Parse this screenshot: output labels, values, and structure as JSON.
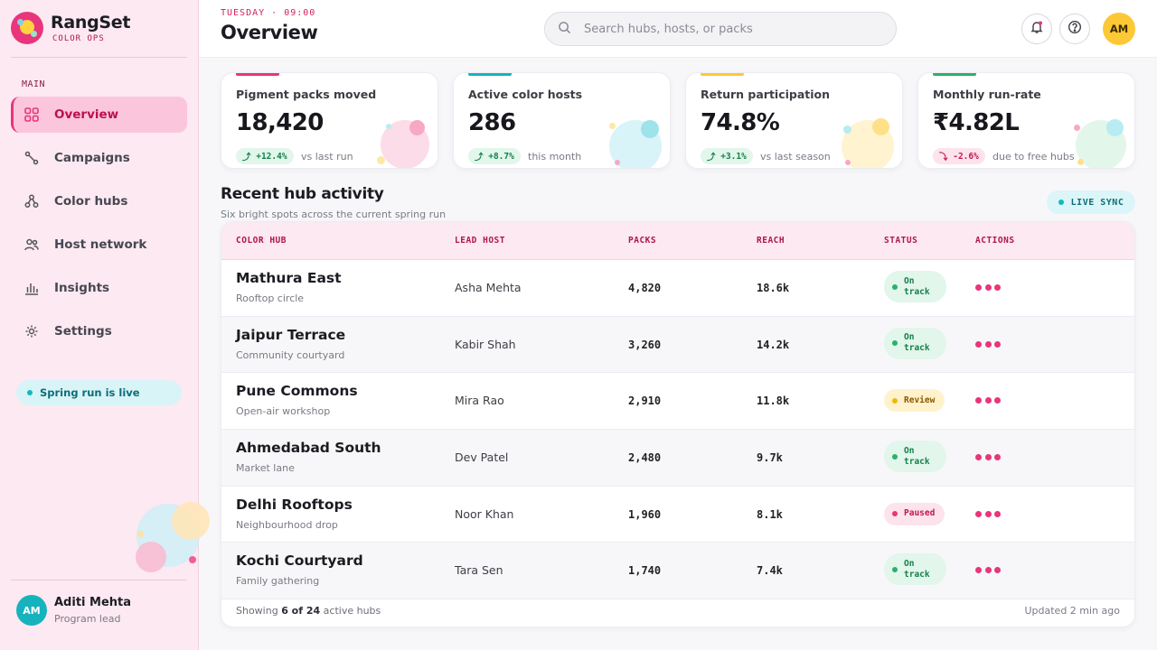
{
  "brand": {
    "name": "RangSet",
    "subtitle": "COLOR OPS"
  },
  "sidebar": {
    "section_label": "MAIN",
    "items": [
      {
        "label": "Overview",
        "icon": "grid-icon",
        "active": true
      },
      {
        "label": "Campaigns",
        "icon": "route-icon"
      },
      {
        "label": "Color hubs",
        "icon": "hub-icon"
      },
      {
        "label": "Host network",
        "icon": "people-icon"
      },
      {
        "label": "Insights",
        "icon": "bar-chart-icon"
      },
      {
        "label": "Settings",
        "icon": "gear-icon"
      }
    ],
    "live_pill": "Spring run is live",
    "user": {
      "initials": "AM",
      "name": "Aditi Mehta",
      "role": "Program lead"
    }
  },
  "header": {
    "kicker": "TUESDAY · 09:00",
    "title": "Overview",
    "search_placeholder": "Search hubs, hosts, or packs",
    "avatar_initials": "AM"
  },
  "kpis": [
    {
      "label": "Pigment packs moved",
      "value": "18,420",
      "delta": "+12.4%",
      "trend": "up",
      "note": "vs last run",
      "color": "#e8357c"
    },
    {
      "label": "Active color hosts",
      "value": "286",
      "delta": "+8.7%",
      "trend": "up",
      "note": "this month",
      "color": "#17b3bd"
    },
    {
      "label": "Return participation",
      "value": "74.8%",
      "delta": "+3.1%",
      "trend": "up",
      "note": "vs last season",
      "color": "#fdc836"
    },
    {
      "label": "Monthly run-rate",
      "value": "₹4.82L",
      "delta": "-2.6%",
      "trend": "down",
      "note": "due to free hubs",
      "color": "#27b26a"
    }
  ],
  "activity": {
    "title": "Recent hub activity",
    "subtitle": "Six bright spots across the current spring run",
    "sync_label": "LIVE SYNC",
    "columns": [
      "COLOR HUB",
      "LEAD HOST",
      "PACKS",
      "REACH",
      "STATUS",
      "ACTIONS"
    ],
    "rows": [
      {
        "hub": "Mathura East",
        "type": "Rooftop circle",
        "host": "Asha Mehta",
        "packs": "4,820",
        "reach": "18.6k",
        "status": "On track"
      },
      {
        "hub": "Jaipur Terrace",
        "type": "Community courtyard",
        "host": "Kabir Shah",
        "packs": "3,260",
        "reach": "14.2k",
        "status": "On track"
      },
      {
        "hub": "Pune Commons",
        "type": "Open-air workshop",
        "host": "Mira Rao",
        "packs": "2,910",
        "reach": "11.8k",
        "status": "Review"
      },
      {
        "hub": "Ahmedabad South",
        "type": "Market lane",
        "host": "Dev Patel",
        "packs": "2,480",
        "reach": "9.7k",
        "status": "On track"
      },
      {
        "hub": "Delhi Rooftops",
        "type": "Neighbourhood drop",
        "host": "Noor Khan",
        "packs": "1,960",
        "reach": "8.1k",
        "status": "Paused"
      },
      {
        "hub": "Kochi Courtyard",
        "type": "Family gathering",
        "host": "Tara Sen",
        "packs": "1,740",
        "reach": "7.4k",
        "status": "On track"
      }
    ],
    "footer": {
      "showing_prefix": "Showing",
      "shown": "6 of 24",
      "showing_suffix": "active hubs",
      "updated": "Updated 2 min ago"
    }
  }
}
